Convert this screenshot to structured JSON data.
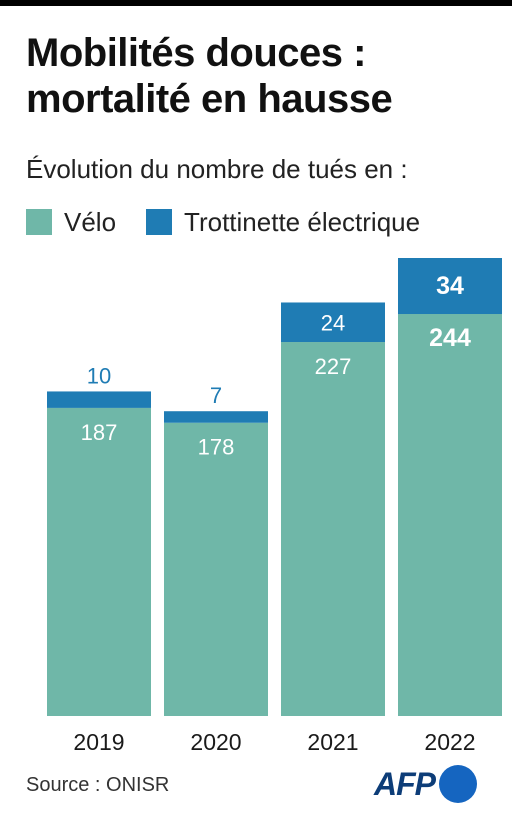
{
  "title": "Mobilités douces : mortalité en hausse",
  "subtitle": "Évolution du nombre de tués en :",
  "source": "Source : ONISR",
  "logo_text": "AFP",
  "colors": {
    "velo": "#6fb7a8",
    "trottinette": "#1f7cb4",
    "text_dark": "#1a1a1a"
  },
  "chart_data": {
    "type": "bar",
    "stacked": true,
    "categories": [
      "2019",
      "2020",
      "2021",
      "2022"
    ],
    "series": [
      {
        "name": "Vélo",
        "values": [
          187,
          178,
          227,
          244
        ]
      },
      {
        "name": "Trottinette électrique",
        "values": [
          10,
          7,
          24,
          34
        ]
      }
    ],
    "title": "Mobilités douces : mortalité en hausse",
    "subtitle": "Évolution du nombre de tués en :",
    "xlabel": "",
    "ylabel": "",
    "ylim": [
      0,
      278
    ],
    "grid": false,
    "legend": "top-left",
    "highlight_category": "2022"
  }
}
